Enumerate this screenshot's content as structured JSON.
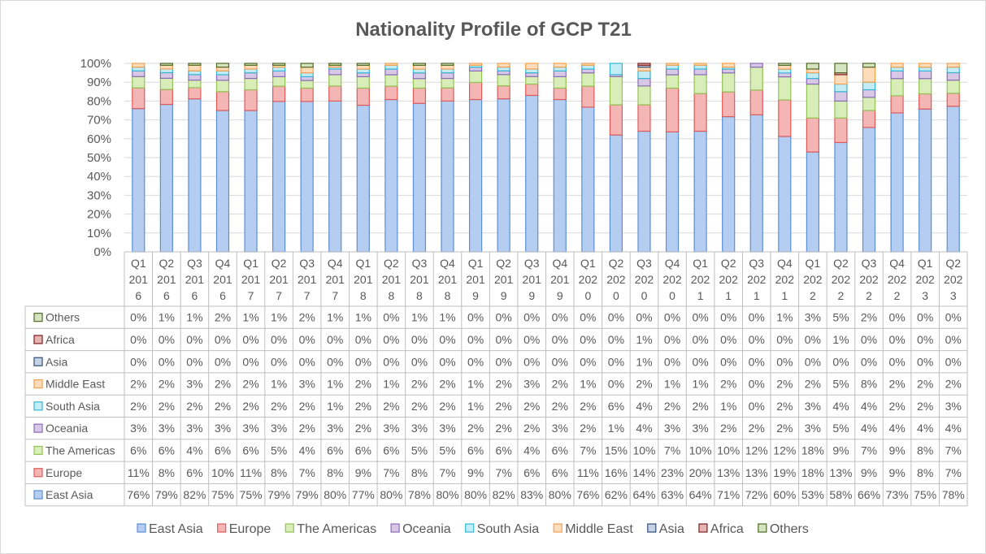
{
  "chart_data": {
    "type": "bar",
    "stacked": "percent",
    "title": "Nationality Profile of GCP T21",
    "ylim": [
      0,
      100
    ],
    "yticks": [
      "0%",
      "10%",
      "20%",
      "30%",
      "40%",
      "50%",
      "60%",
      "70%",
      "80%",
      "90%",
      "100%"
    ],
    "grid": true,
    "legend_position": "bottom",
    "categories": [
      [
        "Q1",
        "201",
        "6"
      ],
      [
        "Q2",
        "201",
        "6"
      ],
      [
        "Q3",
        "201",
        "6"
      ],
      [
        "Q4",
        "201",
        "6"
      ],
      [
        "Q1",
        "201",
        "7"
      ],
      [
        "Q2",
        "201",
        "7"
      ],
      [
        "Q3",
        "201",
        "7"
      ],
      [
        "Q4",
        "201",
        "7"
      ],
      [
        "Q1",
        "201",
        "8"
      ],
      [
        "Q2",
        "201",
        "8"
      ],
      [
        "Q3",
        "201",
        "8"
      ],
      [
        "Q4",
        "201",
        "8"
      ],
      [
        "Q1",
        "201",
        "9"
      ],
      [
        "Q2",
        "201",
        "9"
      ],
      [
        "Q3",
        "201",
        "9"
      ],
      [
        "Q4",
        "201",
        "9"
      ],
      [
        "Q1",
        "202",
        "0"
      ],
      [
        "Q2",
        "202",
        "0"
      ],
      [
        "Q3",
        "202",
        "0"
      ],
      [
        "Q4",
        "202",
        "0"
      ],
      [
        "Q1",
        "202",
        "1"
      ],
      [
        "Q2",
        "202",
        "1"
      ],
      [
        "Q3",
        "202",
        "1"
      ],
      [
        "Q4",
        "202",
        "1"
      ],
      [
        "Q1",
        "202",
        "2"
      ],
      [
        "Q2",
        "202",
        "2"
      ],
      [
        "Q3",
        "202",
        "2"
      ],
      [
        "Q4",
        "202",
        "2"
      ],
      [
        "Q1",
        "202",
        "3"
      ],
      [
        "Q2",
        "202",
        "3"
      ]
    ],
    "series": [
      {
        "name": "East Asia",
        "color": "#b4cdf0",
        "stroke": "#5b8fd6",
        "values": [
          76,
          79,
          82,
          75,
          75,
          79,
          79,
          80,
          77,
          80,
          78,
          80,
          80,
          82,
          83,
          80,
          76,
          62,
          64,
          63,
          64,
          71,
          72,
          60,
          53,
          58,
          66,
          73,
          75,
          78
        ]
      },
      {
        "name": "Europe",
        "color": "#f4b6b5",
        "stroke": "#e05a59",
        "values": [
          11,
          8,
          6,
          10,
          11,
          8,
          7,
          8,
          9,
          7,
          8,
          7,
          9,
          7,
          6,
          6,
          11,
          16,
          14,
          23,
          20,
          13,
          13,
          19,
          18,
          13,
          9,
          9,
          8,
          7
        ]
      },
      {
        "name": "The Americas",
        "color": "#d8edb8",
        "stroke": "#92c353",
        "values": [
          6,
          6,
          4,
          6,
          6,
          5,
          4,
          6,
          6,
          6,
          5,
          5,
          6,
          6,
          4,
          6,
          7,
          15,
          10,
          7,
          10,
          10,
          12,
          12,
          18,
          9,
          7,
          9,
          8,
          7
        ]
      },
      {
        "name": "Oceania",
        "color": "#d7c9e6",
        "stroke": "#8a6bb8",
        "values": [
          3,
          3,
          3,
          3,
          3,
          3,
          2,
          3,
          2,
          3,
          3,
          3,
          2,
          2,
          2,
          3,
          2,
          1,
          4,
          3,
          3,
          2,
          2,
          2,
          3,
          5,
          4,
          4,
          4,
          4
        ]
      },
      {
        "name": "South Asia",
        "color": "#c3ecf5",
        "stroke": "#35b7d4",
        "values": [
          2,
          2,
          2,
          2,
          2,
          2,
          2,
          1,
          2,
          2,
          2,
          2,
          1,
          2,
          2,
          2,
          2,
          6,
          4,
          2,
          2,
          1,
          0,
          2,
          3,
          4,
          4,
          2,
          2,
          3
        ]
      },
      {
        "name": "Middle East",
        "color": "#fddcbb",
        "stroke": "#f4a04e",
        "values": [
          2,
          2,
          3,
          2,
          2,
          1,
          3,
          1,
          2,
          1,
          2,
          2,
          1,
          2,
          3,
          2,
          1,
          0,
          2,
          1,
          1,
          2,
          0,
          2,
          2,
          5,
          8,
          2,
          2,
          2
        ]
      },
      {
        "name": "Asia",
        "color": "#c6d2e3",
        "stroke": "#2f4e75",
        "values": [
          0,
          0,
          0,
          0,
          0,
          0,
          0,
          0,
          0,
          0,
          0,
          0,
          0,
          0,
          0,
          0,
          0,
          0,
          1,
          0,
          0,
          0,
          0,
          0,
          0,
          0,
          0,
          0,
          0,
          0
        ]
      },
      {
        "name": "Africa",
        "color": "#e4b3b3",
        "stroke": "#7f1d1d",
        "values": [
          0,
          0,
          0,
          0,
          0,
          0,
          0,
          0,
          0,
          0,
          0,
          0,
          0,
          0,
          0,
          0,
          0,
          0,
          1,
          0,
          0,
          0,
          0,
          0,
          0,
          1,
          0,
          0,
          0,
          0
        ]
      },
      {
        "name": "Others",
        "color": "#d6e3c0",
        "stroke": "#4f6a24",
        "values": [
          0,
          1,
          1,
          2,
          1,
          1,
          2,
          1,
          1,
          0,
          1,
          1,
          0,
          0,
          0,
          0,
          0,
          0,
          0,
          0,
          0,
          0,
          0,
          1,
          3,
          5,
          2,
          0,
          0,
          0
        ]
      }
    ]
  }
}
